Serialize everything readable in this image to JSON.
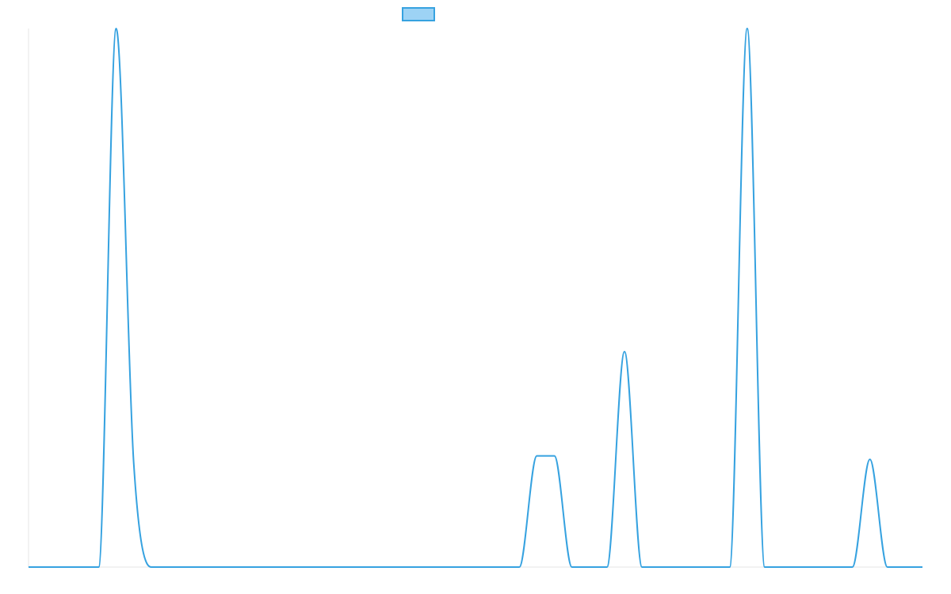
{
  "chart_data": {
    "type": "line",
    "title": "",
    "xlabel": "",
    "ylabel": "",
    "legend": {
      "position": "top-center",
      "label": "",
      "swatch_fill": "#9dd3f5",
      "swatch_stroke": "#36a2e0"
    },
    "colors": {
      "line": "#36a2e0",
      "axis": "#e6e6e6"
    },
    "grid": false,
    "xlim": [
      0,
      51
    ],
    "ylim": [
      0,
      31
    ],
    "x": [
      0,
      1,
      2,
      3,
      4,
      5,
      6,
      7,
      8,
      9,
      10,
      11,
      12,
      13,
      14,
      15,
      16,
      17,
      18,
      19,
      20,
      21,
      22,
      23,
      24,
      25,
      26,
      27,
      28,
      29,
      30,
      31,
      32,
      33,
      34,
      35,
      36,
      37,
      38,
      39,
      40,
      41,
      42,
      43,
      44,
      45,
      46,
      47,
      48,
      49,
      50,
      51
    ],
    "series": [
      {
        "values": [
          0,
          0,
          0,
          0,
          0,
          31,
          6,
          0,
          0,
          0,
          0,
          0,
          0,
          0,
          0,
          0,
          0,
          0,
          0,
          0,
          0,
          0,
          0,
          0,
          0,
          0,
          0,
          0,
          0,
          6.4,
          6.4,
          0,
          0,
          0,
          12.4,
          0,
          0,
          0,
          0,
          0,
          0,
          31,
          0,
          0,
          0,
          0,
          0,
          0,
          6.2,
          0,
          0,
          0
        ]
      }
    ]
  }
}
